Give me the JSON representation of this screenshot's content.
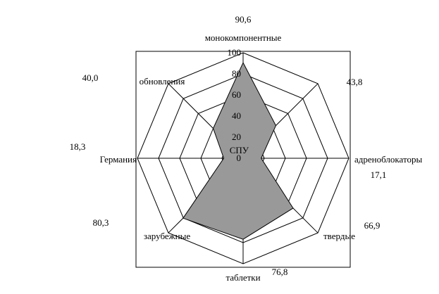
{
  "chart_data": {
    "type": "radar",
    "categories": [
      "монокомпонентные",
      "СПУ",
      "адреноблокаторы",
      "твердые",
      "таблетки",
      "зарубежные",
      "Германия",
      "обновления"
    ],
    "values": [
      90.6,
      43.8,
      17.1,
      66.9,
      76.8,
      80.3,
      18.3,
      40.0
    ],
    "value_labels": [
      "90,6",
      "43,8",
      "17,1",
      "66,9",
      "76,8",
      "80,3",
      "18,3",
      "40,0"
    ],
    "color": "#999999",
    "ylim": [
      0,
      100
    ],
    "yticks": [
      0,
      20,
      40,
      60,
      80,
      100
    ],
    "grid": true
  }
}
